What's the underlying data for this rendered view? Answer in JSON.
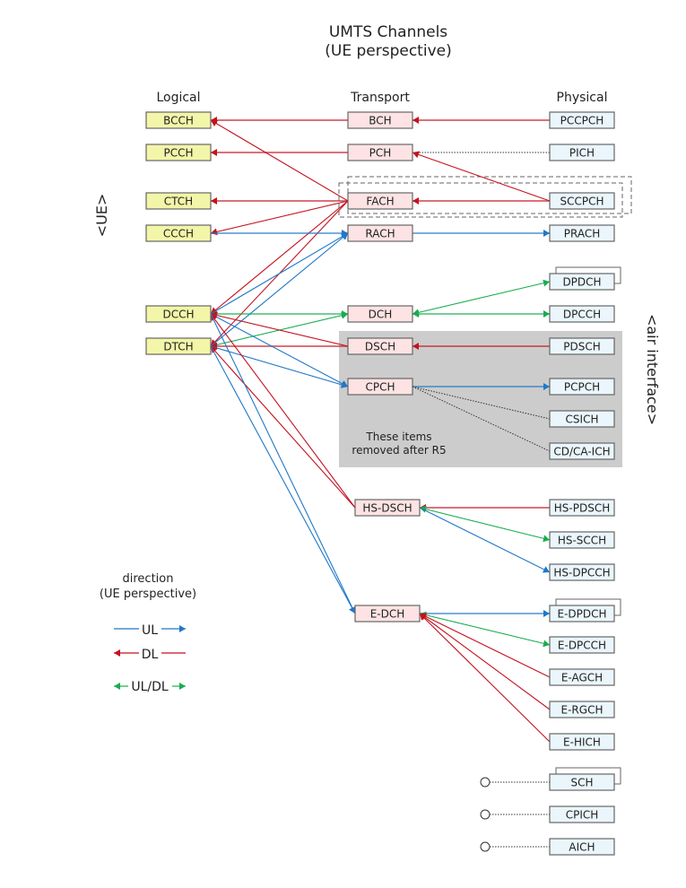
{
  "title": "UMTS Channels",
  "subtitle": "(UE perspective)",
  "headers": {
    "logical": "Logical",
    "transport": "Transport",
    "physical": "Physical"
  },
  "side_labels": {
    "ue": "<UE>",
    "air": "<air interface>"
  },
  "removed_note": [
    "These items",
    "removed after R5"
  ],
  "legend": {
    "title": "direction",
    "subtitle": "(UE perspective)",
    "ul": "UL",
    "dl": "DL",
    "uldl": "UL/DL"
  },
  "colors": {
    "ul": "#1f78c8",
    "dl": "#c4121f",
    "uldl": "#19ad4f",
    "logical_fill": "#f3f5a8",
    "transport_fill": "#fde3e3",
    "physical_fill": "#eaf6fb",
    "removed_area": "#cccccc"
  },
  "nodes": {
    "logical": [
      "BCCH",
      "PCCH",
      "CTCH",
      "CCCH",
      "DCCH",
      "DTCH"
    ],
    "transport": [
      "BCH",
      "PCH",
      "FACH",
      "RACH",
      "DCH",
      "DSCH",
      "CPCH",
      "HS-DSCH",
      "E-DCH"
    ],
    "physical": [
      "PCCPCH",
      "PICH",
      "SCCPCH",
      "PRACH",
      "DPDCH",
      "DPCCH",
      "PDSCH",
      "PCPCH",
      "CSICH",
      "CD/CA-ICH",
      "HS-PDSCH",
      "HS-SCCH",
      "HS-DPCCH",
      "E-DPDCH",
      "E-DPCCH",
      "E-AGCH",
      "E-RGCH",
      "E-HICH",
      "SCH",
      "CPICH",
      "AICH"
    ]
  },
  "edges": [
    {
      "from": "PCCPCH",
      "to": "BCH",
      "dir": "DL"
    },
    {
      "from": "BCH",
      "to": "BCCH",
      "dir": "DL"
    },
    {
      "from": "PCH",
      "to": "PCCH",
      "dir": "DL"
    },
    {
      "from": "PICH",
      "to": "PCH",
      "dir": "dotted"
    },
    {
      "from": "SCCPCH",
      "to": "PCH",
      "dir": "DL"
    },
    {
      "from": "SCCPCH",
      "to": "FACH",
      "dir": "DL"
    },
    {
      "from": "FACH",
      "to": "CTCH",
      "dir": "DL"
    },
    {
      "from": "FACH",
      "to": "BCCH",
      "dir": "DL"
    },
    {
      "from": "FACH",
      "to": "CCCH",
      "dir": "DL"
    },
    {
      "from": "FACH",
      "to": "DCCH",
      "dir": "DL"
    },
    {
      "from": "FACH",
      "to": "DTCH",
      "dir": "DL"
    },
    {
      "from": "CCCH",
      "to": "RACH",
      "dir": "UL"
    },
    {
      "from": "DCCH",
      "to": "RACH",
      "dir": "UL"
    },
    {
      "from": "DTCH",
      "to": "RACH",
      "dir": "UL"
    },
    {
      "from": "RACH",
      "to": "PRACH",
      "dir": "UL"
    },
    {
      "from": "DCCH",
      "to": "DCH",
      "dir": "UL/DL"
    },
    {
      "from": "DTCH",
      "to": "DCH",
      "dir": "UL/DL"
    },
    {
      "from": "DCH",
      "to": "DPDCH",
      "dir": "UL/DL",
      "both": true
    },
    {
      "from": "DCH",
      "to": "DPCCH",
      "dir": "UL/DL",
      "both": true
    },
    {
      "from": "DSCH",
      "to": "DCCH",
      "dir": "DL"
    },
    {
      "from": "DSCH",
      "to": "DTCH",
      "dir": "DL"
    },
    {
      "from": "PDSCH",
      "to": "DSCH",
      "dir": "DL"
    },
    {
      "from": "DCCH",
      "to": "CPCH",
      "dir": "UL"
    },
    {
      "from": "DTCH",
      "to": "CPCH",
      "dir": "UL"
    },
    {
      "from": "CPCH",
      "to": "PCPCH",
      "dir": "UL"
    },
    {
      "from": "CPCH",
      "to": "CSICH",
      "dir": "dotted"
    },
    {
      "from": "CPCH",
      "to": "CD/CA-ICH",
      "dir": "dotted"
    },
    {
      "from": "HS-DSCH",
      "to": "DCCH",
      "dir": "DL"
    },
    {
      "from": "HS-DSCH",
      "to": "DTCH",
      "dir": "DL"
    },
    {
      "from": "HS-PDSCH",
      "to": "HS-DSCH",
      "dir": "DL"
    },
    {
      "from": "HS-DSCH",
      "to": "HS-SCCH",
      "dir": "UL/DL",
      "both": true
    },
    {
      "from": "HS-DSCH",
      "to": "HS-DPCCH",
      "dir": "UL"
    },
    {
      "from": "DCCH",
      "to": "E-DCH",
      "dir": "UL"
    },
    {
      "from": "DTCH",
      "to": "E-DCH",
      "dir": "UL"
    },
    {
      "from": "E-DCH",
      "to": "E-DPDCH",
      "dir": "UL"
    },
    {
      "from": "E-DCH",
      "to": "E-DPCCH",
      "dir": "UL/DL",
      "both": true
    },
    {
      "from": "E-AGCH",
      "to": "E-DCH",
      "dir": "DL"
    },
    {
      "from": "E-RGCH",
      "to": "E-DCH",
      "dir": "DL"
    },
    {
      "from": "E-HICH",
      "to": "E-DCH",
      "dir": "DL"
    }
  ],
  "unconnected": [
    "SCH",
    "CPICH",
    "AICH"
  ],
  "stacked": [
    "DPDCH",
    "E-DPDCH",
    "SCH"
  ]
}
